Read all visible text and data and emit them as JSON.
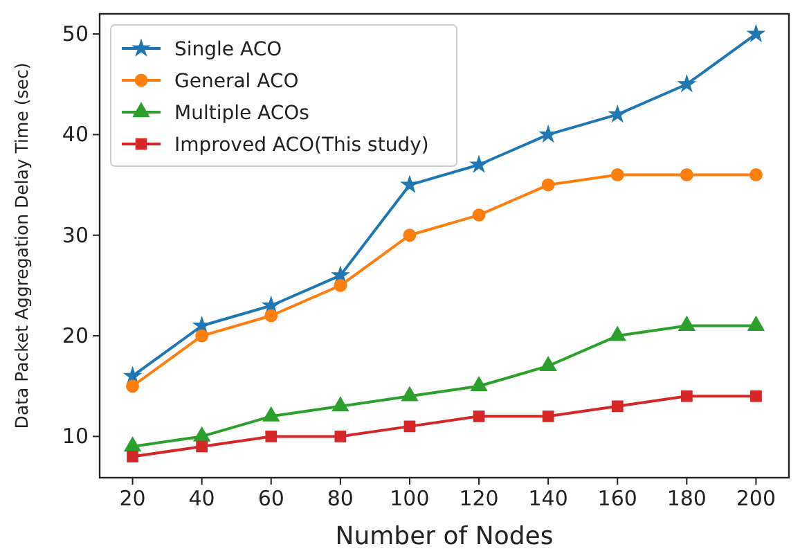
{
  "chart_data": {
    "type": "line",
    "xlabel": "Number of Nodes",
    "ylabel": "Data Packet Aggregation Delay Time (sec)",
    "x": [
      20,
      40,
      60,
      80,
      100,
      120,
      140,
      160,
      180,
      200
    ],
    "xlim": [
      10.5,
      209.5
    ],
    "xticks": [
      20,
      40,
      60,
      80,
      100,
      120,
      140,
      160,
      180,
      200
    ],
    "ylim": [
      5.9,
      52
    ],
    "yticks": [
      10,
      20,
      30,
      40,
      50
    ],
    "grid": false,
    "legend": "top left",
    "line_style": "solid",
    "series": [
      {
        "name": "Single ACO",
        "color": "#1f77b4",
        "marker": "star",
        "values": [
          16,
          21,
          23,
          26,
          35,
          37,
          40,
          42,
          45,
          50
        ]
      },
      {
        "name": "General ACO",
        "color": "#ff7f0e",
        "marker": "circle",
        "values": [
          15,
          20,
          22,
          25,
          30,
          32,
          35,
          36,
          36,
          36
        ]
      },
      {
        "name": "Multiple ACOs",
        "color": "#2ca02c",
        "marker": "triangle",
        "values": [
          9,
          10,
          12,
          13,
          14,
          15,
          17,
          20,
          21,
          21
        ]
      },
      {
        "name": "Improved ACO(This study)",
        "color": "#d62728",
        "marker": "square",
        "values": [
          8,
          9,
          10,
          10,
          11,
          12,
          12,
          13,
          14,
          14
        ]
      }
    ]
  }
}
